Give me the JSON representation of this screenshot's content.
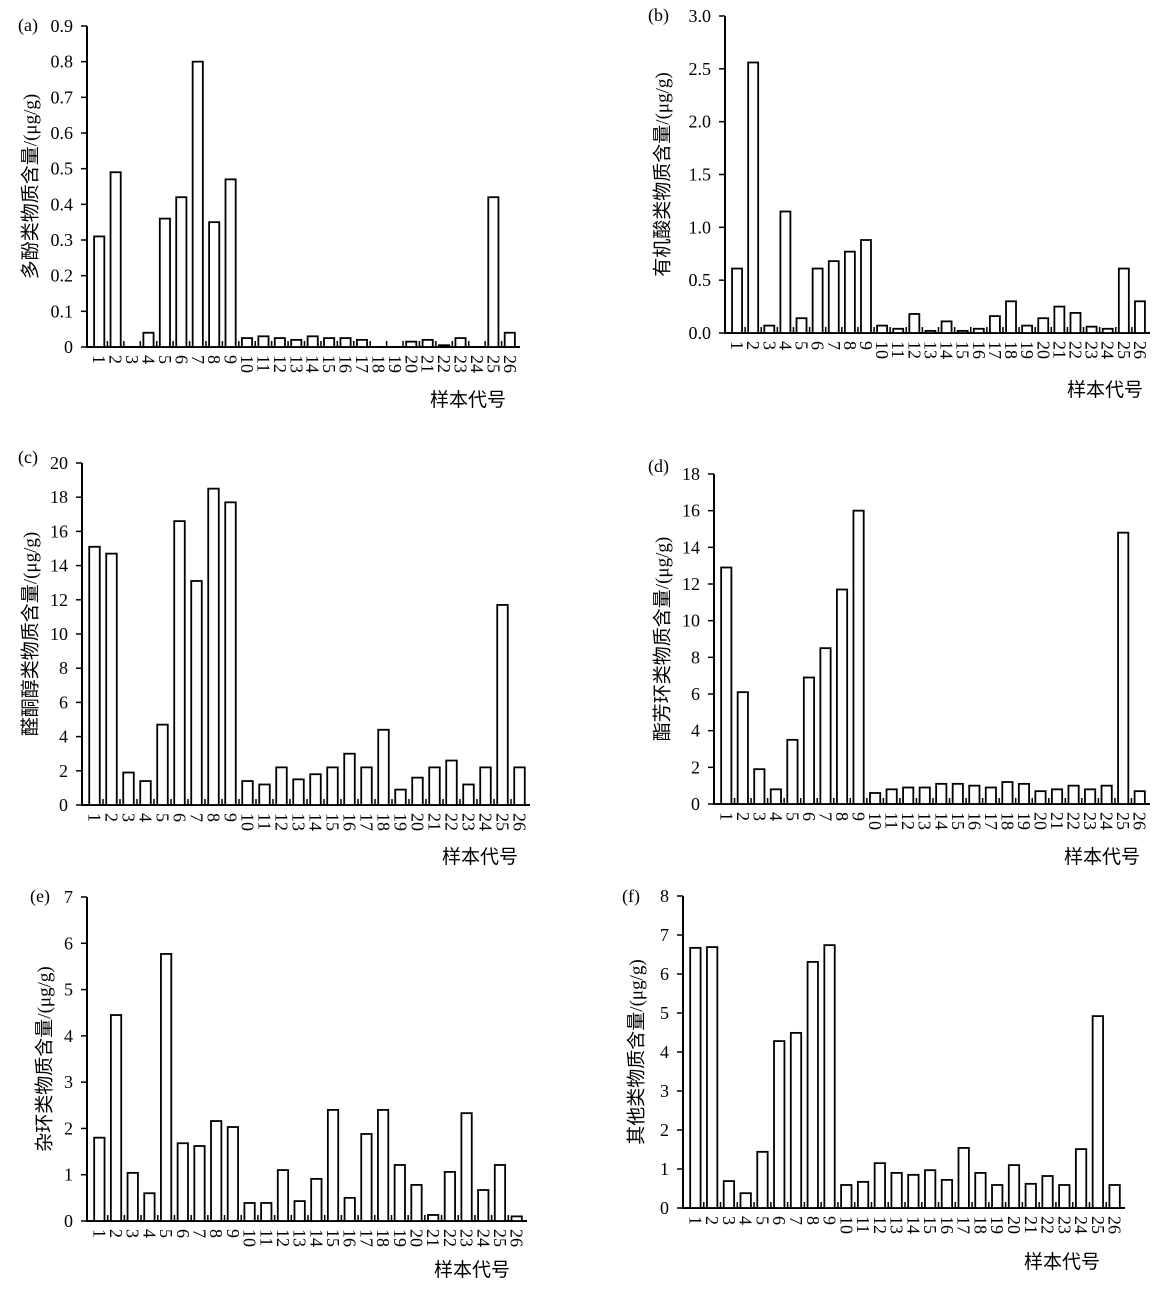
{
  "chart_data": [
    {
      "type": "bar",
      "panel": "(a)",
      "title": "",
      "ylabel": "多酚类物质含量/(μg/g)",
      "xlabel": "样本代号",
      "ylim": [
        0,
        0.9
      ],
      "yticks": [
        "0",
        "0.1",
        "0.2",
        "0.3",
        "0.4",
        "0.5",
        "0.6",
        "0.7",
        "0.8",
        "0.9"
      ],
      "categories": [
        "1",
        "2",
        "3",
        "4",
        "5",
        "6",
        "7",
        "8",
        "9",
        "10",
        "11",
        "12",
        "13",
        "14",
        "15",
        "16",
        "17",
        "18",
        "19",
        "20",
        "21",
        "22",
        "23",
        "24",
        "25",
        "26"
      ],
      "values": [
        0.31,
        0.49,
        0,
        0.04,
        0.36,
        0.42,
        0.8,
        0.35,
        0.47,
        0.025,
        0.03,
        0.025,
        0.02,
        0.03,
        0.025,
        0.025,
        0.02,
        0,
        0,
        0.015,
        0.02,
        0.005,
        0.025,
        0,
        0.42,
        0.04
      ]
    },
    {
      "type": "bar",
      "panel": "(b)",
      "title": "",
      "ylabel": "有机酸类物质含量/(μg/g)",
      "xlabel": "样本代号",
      "ylim": [
        0,
        3.0
      ],
      "yticks": [
        "0.0",
        "0.5",
        "1.0",
        "1.5",
        "2.0",
        "2.5",
        "3.0"
      ],
      "categories": [
        "1",
        "2",
        "3",
        "4",
        "5",
        "6",
        "7",
        "8",
        "9",
        "10",
        "11",
        "12",
        "13",
        "14",
        "15",
        "16",
        "17",
        "18",
        "19",
        "20",
        "21",
        "22",
        "23",
        "24",
        "25",
        "26"
      ],
      "values": [
        0.61,
        2.56,
        0.07,
        1.15,
        0.14,
        0.61,
        0.68,
        0.77,
        0.88,
        0.07,
        0.04,
        0.18,
        0.02,
        0.11,
        0.02,
        0.04,
        0.16,
        0.3,
        0.07,
        0.14,
        0.25,
        0.19,
        0.06,
        0.04,
        0.61,
        0.3
      ]
    },
    {
      "type": "bar",
      "panel": "(c)",
      "title": "",
      "ylabel": "醛酮醇类物质含量/(μg/g)",
      "xlabel": "样本代号",
      "ylim": [
        0,
        20
      ],
      "yticks": [
        "0",
        "2",
        "4",
        "6",
        "8",
        "10",
        "12",
        "14",
        "16",
        "18",
        "20"
      ],
      "categories": [
        "1",
        "2",
        "3",
        "4",
        "5",
        "6",
        "7",
        "8",
        "9",
        "10",
        "11",
        "12",
        "13",
        "14",
        "15",
        "16",
        "17",
        "18",
        "19",
        "20",
        "21",
        "22",
        "23",
        "24",
        "25",
        "26"
      ],
      "values": [
        15.1,
        14.7,
        1.9,
        1.4,
        4.7,
        16.6,
        13.1,
        18.5,
        17.7,
        1.4,
        1.2,
        2.2,
        1.5,
        1.8,
        2.2,
        3.0,
        2.2,
        4.4,
        0.9,
        1.6,
        2.2,
        2.6,
        1.2,
        2.2,
        11.7,
        2.2
      ]
    },
    {
      "type": "bar",
      "panel": "(d)",
      "title": "",
      "ylabel": "酯芳环类物质含量/(μg/g)",
      "xlabel": "样本代号",
      "ylim": [
        0,
        18
      ],
      "yticks": [
        "0",
        "2",
        "4",
        "6",
        "8",
        "10",
        "12",
        "14",
        "16",
        "18"
      ],
      "categories": [
        "1",
        "2",
        "3",
        "4",
        "5",
        "6",
        "7",
        "8",
        "9",
        "10",
        "11",
        "12",
        "13",
        "14",
        "15",
        "16",
        "17",
        "18",
        "19",
        "20",
        "21",
        "22",
        "23",
        "24",
        "25",
        "26"
      ],
      "values": [
        12.9,
        6.1,
        1.9,
        0.8,
        3.5,
        6.9,
        8.5,
        11.7,
        16.0,
        0.6,
        0.8,
        0.9,
        0.9,
        1.1,
        1.1,
        1.0,
        0.9,
        1.2,
        1.1,
        0.7,
        0.8,
        1.0,
        0.8,
        1.0,
        14.8,
        0.7
      ]
    },
    {
      "type": "bar",
      "panel": "(e)",
      "title": "",
      "ylabel": "杂环类物质含量/(μg/g)",
      "xlabel": "样本代号",
      "ylim": [
        0,
        7
      ],
      "yticks": [
        "0",
        "1",
        "2",
        "3",
        "4",
        "5",
        "6",
        "7"
      ],
      "categories": [
        "1",
        "2",
        "3",
        "4",
        "5",
        "6",
        "7",
        "8",
        "9",
        "10",
        "11",
        "12",
        "13",
        "14",
        "15",
        "16",
        "17",
        "18",
        "19",
        "20",
        "21",
        "22",
        "23",
        "24",
        "25",
        "26"
      ],
      "values": [
        1.8,
        4.45,
        1.04,
        0.6,
        5.77,
        1.68,
        1.62,
        2.16,
        2.03,
        0.39,
        0.39,
        1.1,
        0.43,
        0.91,
        2.4,
        0.5,
        1.88,
        2.4,
        1.21,
        0.78,
        0.13,
        1.06,
        2.33,
        0.67,
        1.21,
        0.1
      ]
    },
    {
      "type": "bar",
      "panel": "(f)",
      "title": "",
      "ylabel": "其他类物质含量/(μg/g)",
      "xlabel": "样本代号",
      "ylim": [
        0,
        8
      ],
      "yticks": [
        "0",
        "1",
        "2",
        "3",
        "4",
        "5",
        "6",
        "7",
        "8"
      ],
      "categories": [
        "1",
        "2",
        "3",
        "4",
        "5",
        "6",
        "7",
        "8",
        "9",
        "10",
        "11",
        "12",
        "13",
        "14",
        "15",
        "16",
        "17",
        "18",
        "19",
        "20",
        "21",
        "22",
        "23",
        "24",
        "25",
        "26"
      ],
      "values": [
        6.67,
        6.69,
        0.69,
        0.38,
        1.44,
        4.28,
        4.49,
        6.31,
        6.74,
        0.59,
        0.67,
        1.15,
        0.9,
        0.85,
        0.97,
        0.72,
        1.54,
        0.9,
        0.59,
        1.1,
        0.62,
        0.82,
        0.59,
        1.51,
        4.92,
        0.59
      ]
    }
  ]
}
